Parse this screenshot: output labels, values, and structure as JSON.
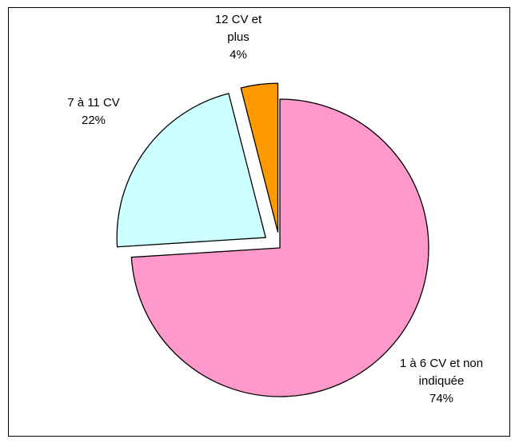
{
  "chart_data": {
    "type": "pie",
    "categories": [
      "1 à 6 CV et non indiquée",
      "7 à 11 CV",
      "12 CV et plus"
    ],
    "values": [
      74,
      22,
      4
    ],
    "value_labels": [
      "74%",
      "22%",
      "4%"
    ],
    "colors": [
      "#ff99cc",
      "#ccffff",
      "#ff9900"
    ]
  }
}
